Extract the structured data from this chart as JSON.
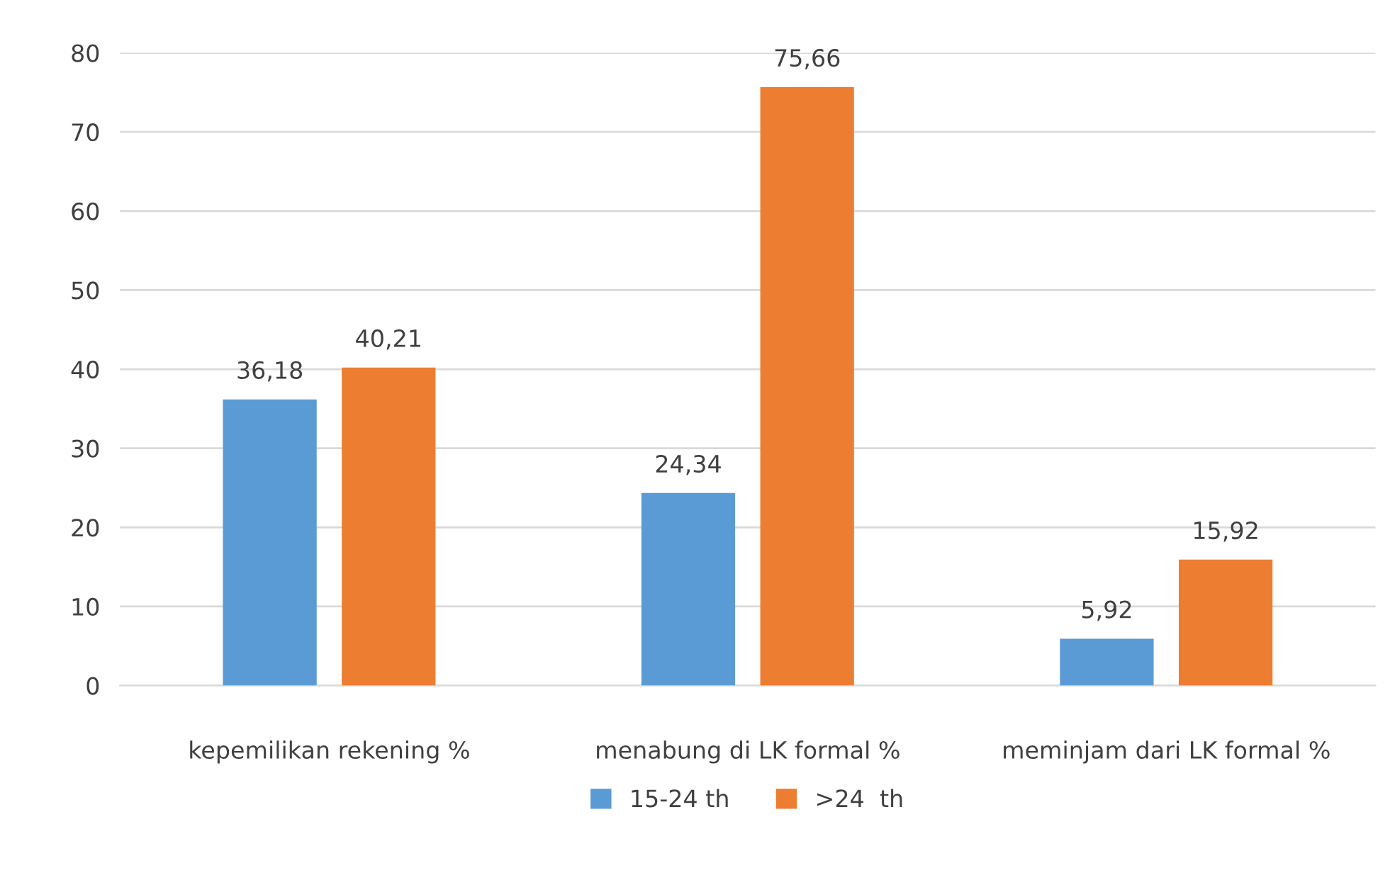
{
  "chart_data": {
    "type": "bar",
    "categories": [
      "kepemilikan rekening %",
      "menabung di LK formal %",
      "meminjam dari LK formal %"
    ],
    "series": [
      {
        "name": "15-24 th",
        "color": "#5b9bd5",
        "values": [
          36.18,
          24.34,
          5.92
        ],
        "value_labels": [
          "36,18",
          "24,34",
          "5,92"
        ]
      },
      {
        "name": ">24  th",
        "color": "#ed7d31",
        "values": [
          40.21,
          75.66,
          15.92
        ],
        "value_labels": [
          "40,21",
          "75,66",
          "15,92"
        ]
      }
    ],
    "ylim": [
      0,
      80
    ],
    "yticks": [
      0,
      10,
      20,
      30,
      40,
      50,
      60,
      70,
      80
    ],
    "grid": "y",
    "legend": "bottom"
  }
}
